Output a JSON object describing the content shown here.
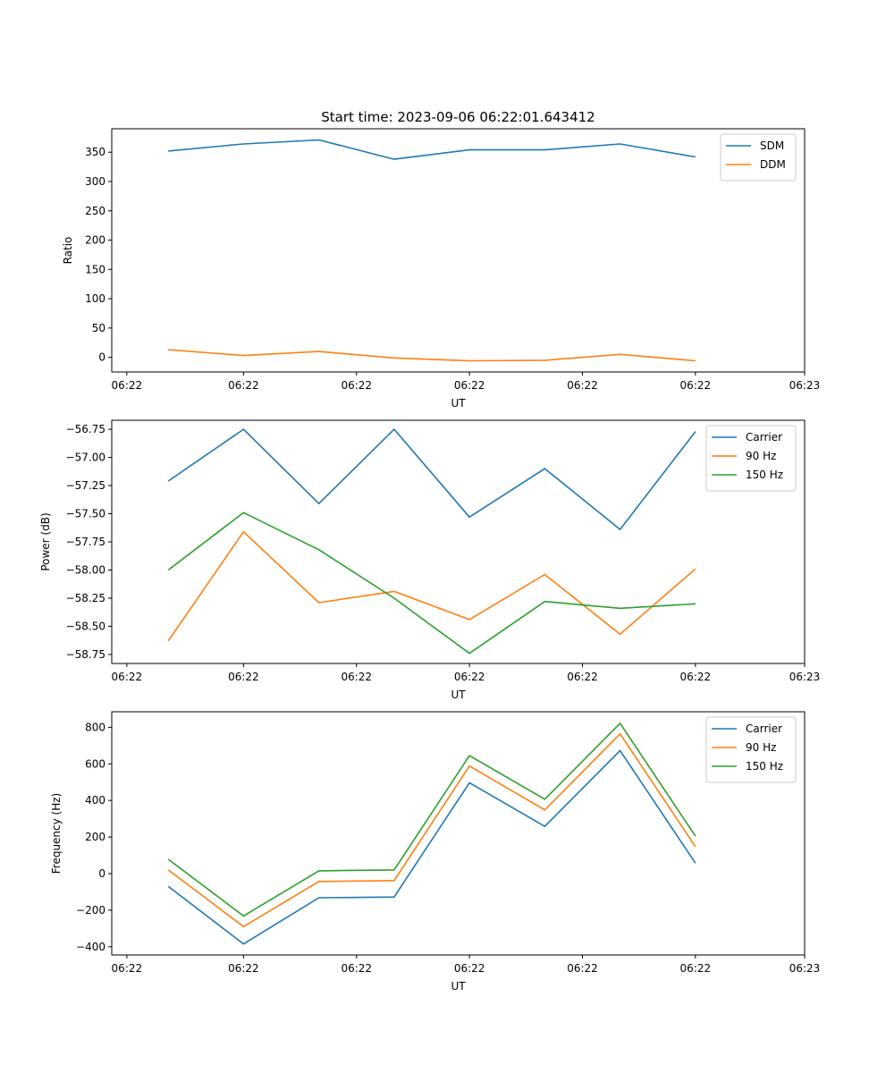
{
  "figure_title": "Start time: 2023-09-06 06:22:01.643412",
  "chart_data": [
    {
      "type": "line",
      "title": "Start time: 2023-09-06 06:22:01.643412",
      "xlabel": "UT",
      "ylabel": "Ratio",
      "x": [
        1,
        2,
        3,
        4,
        5,
        6,
        7,
        8
      ],
      "xlim": [
        0.25,
        9.45
      ],
      "x_ticks": [
        0.45,
        2.0,
        3.5,
        5.0,
        6.5,
        8.0,
        9.45
      ],
      "x_tick_labels": [
        "06:22",
        "06:22",
        "06:22",
        "06:22",
        "06:22",
        "06:22",
        "06:23"
      ],
      "ylim": [
        -25,
        390
      ],
      "y_ticks": [
        0,
        50,
        100,
        150,
        200,
        250,
        300,
        350
      ],
      "y_tick_labels": [
        "0",
        "50",
        "100",
        "150",
        "200",
        "250",
        "300",
        "350"
      ],
      "legend_position": "upper right",
      "series": [
        {
          "name": "SDM",
          "color": "#1f77b4",
          "values": [
            352,
            364,
            371,
            338,
            354,
            354,
            364,
            342
          ]
        },
        {
          "name": "DDM",
          "color": "#ff7f0e",
          "values": [
            13,
            3,
            10,
            -1,
            -6,
            -5,
            5,
            -6
          ]
        }
      ]
    },
    {
      "type": "line",
      "xlabel": "UT",
      "ylabel": "Power (dB)",
      "x": [
        1,
        2,
        3,
        4,
        5,
        6,
        7,
        8
      ],
      "xlim": [
        0.25,
        9.45
      ],
      "x_ticks": [
        0.45,
        2.0,
        3.5,
        5.0,
        6.5,
        8.0,
        9.45
      ],
      "x_tick_labels": [
        "06:22",
        "06:22",
        "06:22",
        "06:22",
        "06:22",
        "06:22",
        "06:23"
      ],
      "ylim": [
        -58.83,
        -56.67
      ],
      "y_ticks": [
        -56.75,
        -57.0,
        -57.25,
        -57.5,
        -57.75,
        -58.0,
        -58.25,
        -58.5,
        -58.75
      ],
      "y_tick_labels": [
        "−56.75",
        "−57.00",
        "−57.25",
        "−57.50",
        "−57.75",
        "−58.00",
        "−58.25",
        "−58.50",
        "−58.75"
      ],
      "legend_position": "upper right",
      "series": [
        {
          "name": "Carrier",
          "color": "#1f77b4",
          "values": [
            -57.21,
            -56.75,
            -57.41,
            -56.75,
            -57.53,
            -57.1,
            -57.64,
            -56.77
          ]
        },
        {
          "name": "90 Hz",
          "color": "#ff7f0e",
          "values": [
            -58.63,
            -57.66,
            -58.29,
            -58.19,
            -58.44,
            -58.04,
            -58.57,
            -57.99
          ]
        },
        {
          "name": "150 Hz",
          "color": "#2ca02c",
          "values": [
            -58.0,
            -57.49,
            -57.82,
            -58.25,
            -58.74,
            -58.28,
            -58.34,
            -58.3
          ]
        }
      ]
    },
    {
      "type": "line",
      "xlabel": "UT",
      "ylabel": "Frequency (Hz)",
      "x": [
        1,
        2,
        3,
        4,
        5,
        6,
        7,
        8
      ],
      "xlim": [
        0.25,
        9.45
      ],
      "x_ticks": [
        0.45,
        2.0,
        3.5,
        5.0,
        6.5,
        8.0,
        9.45
      ],
      "x_tick_labels": [
        "06:22",
        "06:22",
        "06:22",
        "06:22",
        "06:22",
        "06:22",
        "06:23"
      ],
      "ylim": [
        -445,
        885
      ],
      "y_ticks": [
        800,
        600,
        400,
        200,
        0,
        -200,
        -400
      ],
      "y_tick_labels": [
        "800",
        "600",
        "400",
        "200",
        "0",
        "−200",
        "−400"
      ],
      "legend_position": "upper right",
      "series": [
        {
          "name": "Carrier",
          "color": "#1f77b4",
          "values": [
            -70,
            -385,
            -132,
            -128,
            497,
            258,
            673,
            57
          ]
        },
        {
          "name": "90 Hz",
          "color": "#ff7f0e",
          "values": [
            20,
            -290,
            -43,
            -38,
            588,
            348,
            764,
            147
          ]
        },
        {
          "name": "150 Hz",
          "color": "#2ca02c",
          "values": [
            78,
            -232,
            15,
            20,
            645,
            407,
            822,
            205
          ]
        }
      ]
    }
  ]
}
